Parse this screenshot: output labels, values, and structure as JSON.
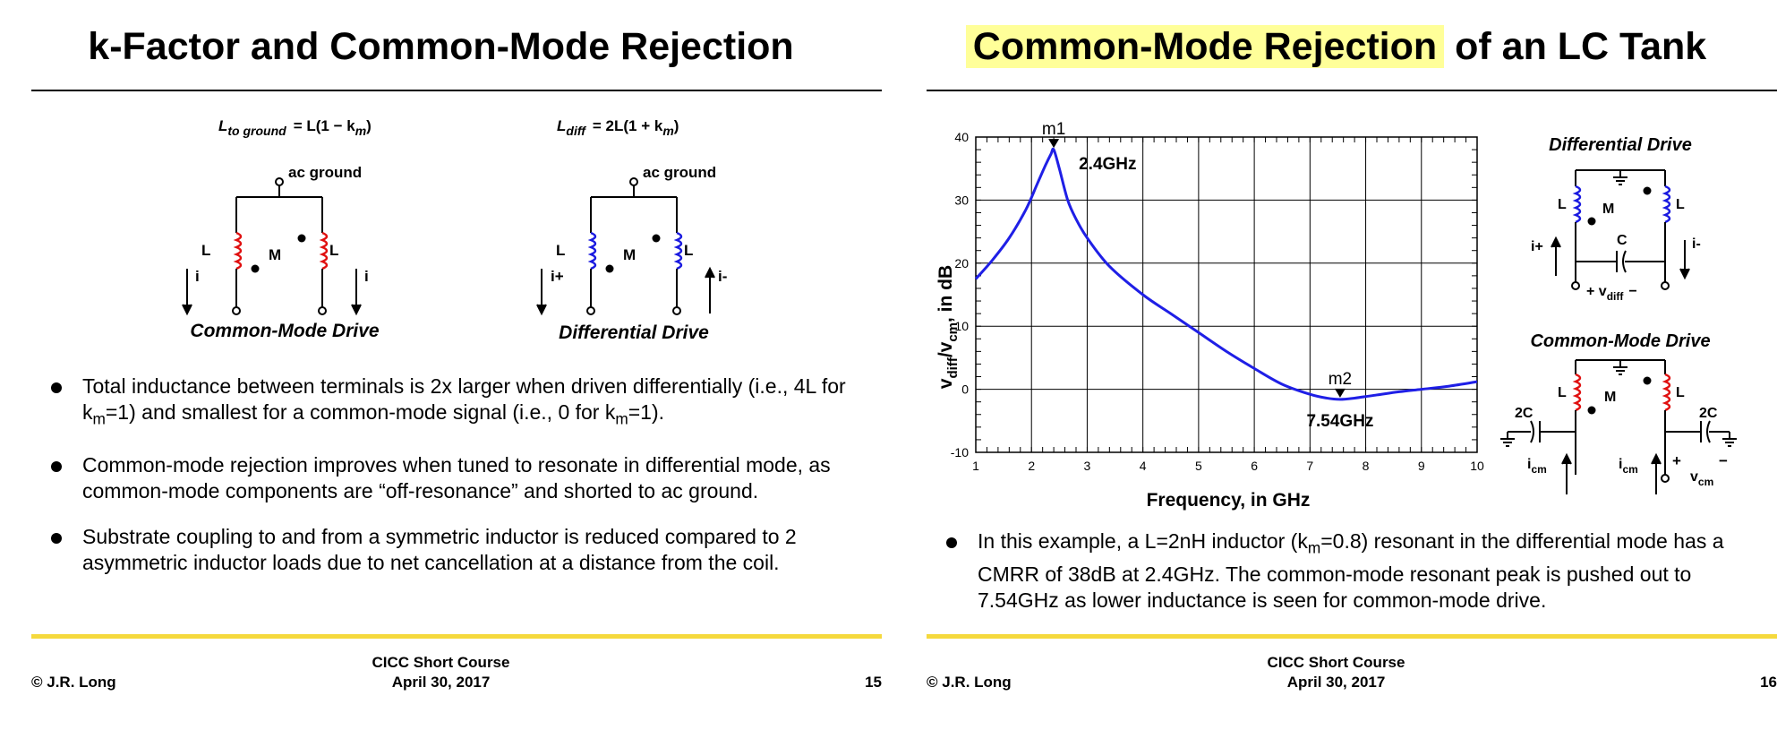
{
  "slide_left": {
    "title": "k-Factor and Common-Mode Rejection",
    "eq_ground_lhs": "L",
    "eq_ground_sub": "to ground",
    "eq_ground_rhs": "= L(1 − k",
    "eq_ground_sub2": "m",
    "eq_ground_end": ")",
    "eq_diff_lhs": "L",
    "eq_diff_sub": "diff",
    "eq_diff_rhs": "= 2L(1 + k",
    "eq_diff_sub2": "m",
    "eq_diff_end": ")",
    "cm_circuit": {
      "ac_ground": "ac ground",
      "L": "L",
      "M": "M",
      "i": "i",
      "caption": "Common-Mode Drive"
    },
    "diff_circuit": {
      "ac_ground": "ac ground",
      "L": "L",
      "M": "M",
      "i_plus": "i+",
      "i_minus": "i-",
      "caption": "Differential Drive"
    },
    "bullet1_a": "Total inductance between terminals is 2x larger when driven differentially (i.e., 4L for",
    "bullet1_b1": "k",
    "bullet1_b1sub": "m",
    "bullet1_b2": "=1) and smallest for a common-mode signal (i.e., 0 for k",
    "bullet1_b2sub": "m",
    "bullet1_b3": "=1).",
    "bullet2": "Common-mode rejection improves when tuned to resonate in differential mode, as common-mode components are “off-resonance” and shorted to ac ground.",
    "bullet3": "Substrate coupling to and from a symmetric inductor is reduced compared to 2 asymmetric inductor loads due to net cancellation at a distance from the coil.",
    "footer_left": "© J.R. Long",
    "footer_center_1": "CICC Short Course",
    "footer_center_2": "April 30, 2017",
    "page_number": "15"
  },
  "slide_right": {
    "title_highlight": "Common-Mode Rejection",
    "title_rest": " of an LC Tank",
    "diff_drive": {
      "caption": "Differential Drive",
      "L": "L",
      "M": "M",
      "C": "C",
      "i_plus": "i+",
      "i_minus": "i-",
      "vdiff_plus": "+ v",
      "vdiff_sub": "diff",
      "vdiff_minus": "−"
    },
    "cm_drive": {
      "caption": "Common-Mode Drive",
      "L": "L",
      "M": "M",
      "cap": "2C",
      "icm": "i",
      "icm_sub": "cm",
      "plus": "+",
      "vcm": "v",
      "vcm_sub": "cm",
      "minus": "−"
    },
    "bullet_a": "In this example, a L=2nH inductor (k",
    "bullet_a_sub": "m",
    "bullet_a_rest": "=0.8) resonant in the differential mode has a CMRR of 38dB at 2.4GHz. The common-mode resonant peak is pushed out to 7.54GHz as lower inductance is seen for common-mode drive.",
    "footer_left": "© J.R. Long",
    "footer_center_1": "CICC Short Course",
    "footer_center_2": "April 30, 2017",
    "page_number": "16"
  },
  "chart_data": {
    "type": "line",
    "title": "",
    "xlabel": "Frequency, in GHz",
    "ylabel_main": "v",
    "ylabel_sub1": "diff",
    "ylabel_mid": "/v",
    "ylabel_sub2": "cm",
    "ylabel_end": ", in dB",
    "xlim": [
      1,
      10
    ],
    "ylim": [
      -10,
      40
    ],
    "x_ticks": [
      "1",
      "2",
      "3",
      "4",
      "5",
      "6",
      "7",
      "8",
      "9",
      "10"
    ],
    "y_ticks": [
      "40",
      "30",
      "20",
      "10",
      "0",
      "-10"
    ],
    "series": [
      {
        "name": "CMRR",
        "color": "#1f1fe6",
        "x": [
          1.0,
          1.3,
          1.6,
          1.9,
          2.1,
          2.25,
          2.35,
          2.4,
          2.5,
          2.65,
          2.8,
          3.0,
          3.4,
          4.0,
          4.5,
          5.0,
          5.5,
          6.0,
          6.5,
          7.0,
          7.3,
          7.54,
          7.8,
          8.2,
          8.6,
          9.0,
          9.5,
          10.0
        ],
        "y": [
          17.5,
          20.5,
          24.0,
          28.5,
          32.5,
          35.5,
          37.3,
          38.0,
          35.0,
          30.0,
          27.0,
          24.0,
          19.5,
          15.0,
          12.0,
          9.0,
          6.0,
          3.3,
          0.8,
          -0.8,
          -1.4,
          -1.6,
          -1.4,
          -0.9,
          -0.4,
          0.0,
          0.5,
          1.2
        ]
      }
    ],
    "markers": [
      {
        "name": "m1",
        "x": 2.4,
        "y": 38.0,
        "label": "2.4GHz"
      },
      {
        "name": "m2",
        "x": 7.54,
        "y": -1.6,
        "label": "7.54GHz"
      }
    ],
    "grid": true
  },
  "colors": {
    "coil_red": "#e01010",
    "coil_blue": "#1a1ae0",
    "highlight": "#ffff99",
    "footer_rule": "#f5d93d"
  }
}
